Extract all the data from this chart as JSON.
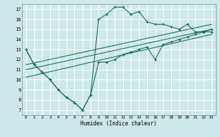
{
  "xlabel": "Humidex (Indice chaleur)",
  "background_color": "#cce8e8",
  "grid_color": "#ffffff",
  "line_color": "#1a6b5a",
  "xlim": [
    -0.5,
    23.5
  ],
  "ylim": [
    6.5,
    17.5
  ],
  "xticks": [
    0,
    1,
    2,
    3,
    4,
    5,
    6,
    7,
    8,
    9,
    10,
    11,
    12,
    13,
    14,
    15,
    16,
    17,
    18,
    19,
    20,
    21,
    22,
    23
  ],
  "yticks": [
    7,
    8,
    9,
    10,
    11,
    12,
    13,
    14,
    15,
    16,
    17
  ],
  "curve1_x": [
    0,
    1,
    2,
    3,
    4,
    5,
    6,
    7,
    8,
    9,
    10,
    11,
    12,
    13,
    14,
    15,
    16,
    17,
    18,
    19,
    20,
    21,
    22,
    23
  ],
  "curve1_y": [
    13,
    11.5,
    10.75,
    10,
    9,
    8.25,
    7.75,
    7.0,
    8.5,
    16.0,
    16.5,
    17.2,
    17.2,
    16.5,
    16.75,
    15.75,
    15.5,
    15.5,
    15.25,
    15.0,
    15.5,
    14.75,
    14.75,
    14.75
  ],
  "curve2_x": [
    0,
    1,
    2,
    3,
    4,
    5,
    6,
    7,
    8,
    9,
    10,
    11,
    12,
    13,
    14,
    15,
    16,
    17,
    18,
    19,
    20,
    21,
    22,
    23
  ],
  "curve2_y": [
    13,
    11.5,
    10.75,
    10,
    9,
    8.25,
    7.75,
    7.0,
    8.5,
    11.75,
    11.75,
    12.0,
    12.5,
    12.75,
    13.0,
    13.25,
    12.0,
    13.5,
    13.75,
    14.0,
    14.25,
    14.5,
    14.75,
    15.0
  ],
  "line1_x": [
    0,
    23
  ],
  "line1_y": [
    11.5,
    15.5
  ],
  "line2_x": [
    0,
    23
  ],
  "line2_y": [
    11.0,
    15.0
  ],
  "line3_x": [
    0,
    23
  ],
  "line3_y": [
    10.25,
    14.5
  ]
}
